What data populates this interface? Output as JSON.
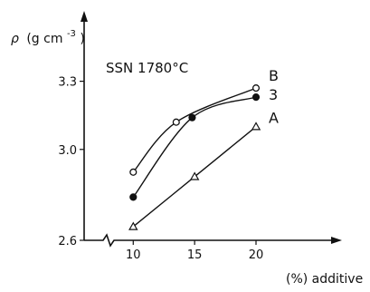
{
  "chart_data": {
    "type": "line",
    "ylabel_symbol": "ρ",
    "ylabel_unit": "(g cm",
    "ylabel_exp": "-3",
    "ylabel_close": ")",
    "xlabel": "(%) additive",
    "annotation": "SSN 1780°C",
    "xlim": [
      6,
      27
    ],
    "ylim": [
      2.6,
      3.45
    ],
    "xticks": [
      10,
      15,
      20
    ],
    "xtick_labels": [
      "10",
      "15",
      "20"
    ],
    "yticks": [
      2.6,
      3.0,
      3.3
    ],
    "ytick_labels": [
      "2.6",
      "3.0",
      "3.3"
    ],
    "axis_break": true,
    "series": [
      {
        "name": "B",
        "marker": "open-circle",
        "x": [
          10,
          13.5,
          20
        ],
        "y": [
          2.9,
          3.12,
          3.27
        ]
      },
      {
        "name": "3",
        "marker": "filled-circle",
        "x": [
          10,
          14.8,
          20
        ],
        "y": [
          2.79,
          3.14,
          3.23
        ]
      },
      {
        "name": "A",
        "marker": "open-triangle",
        "x": [
          10,
          15,
          20
        ],
        "y": [
          2.66,
          2.88,
          3.1
        ]
      }
    ]
  }
}
